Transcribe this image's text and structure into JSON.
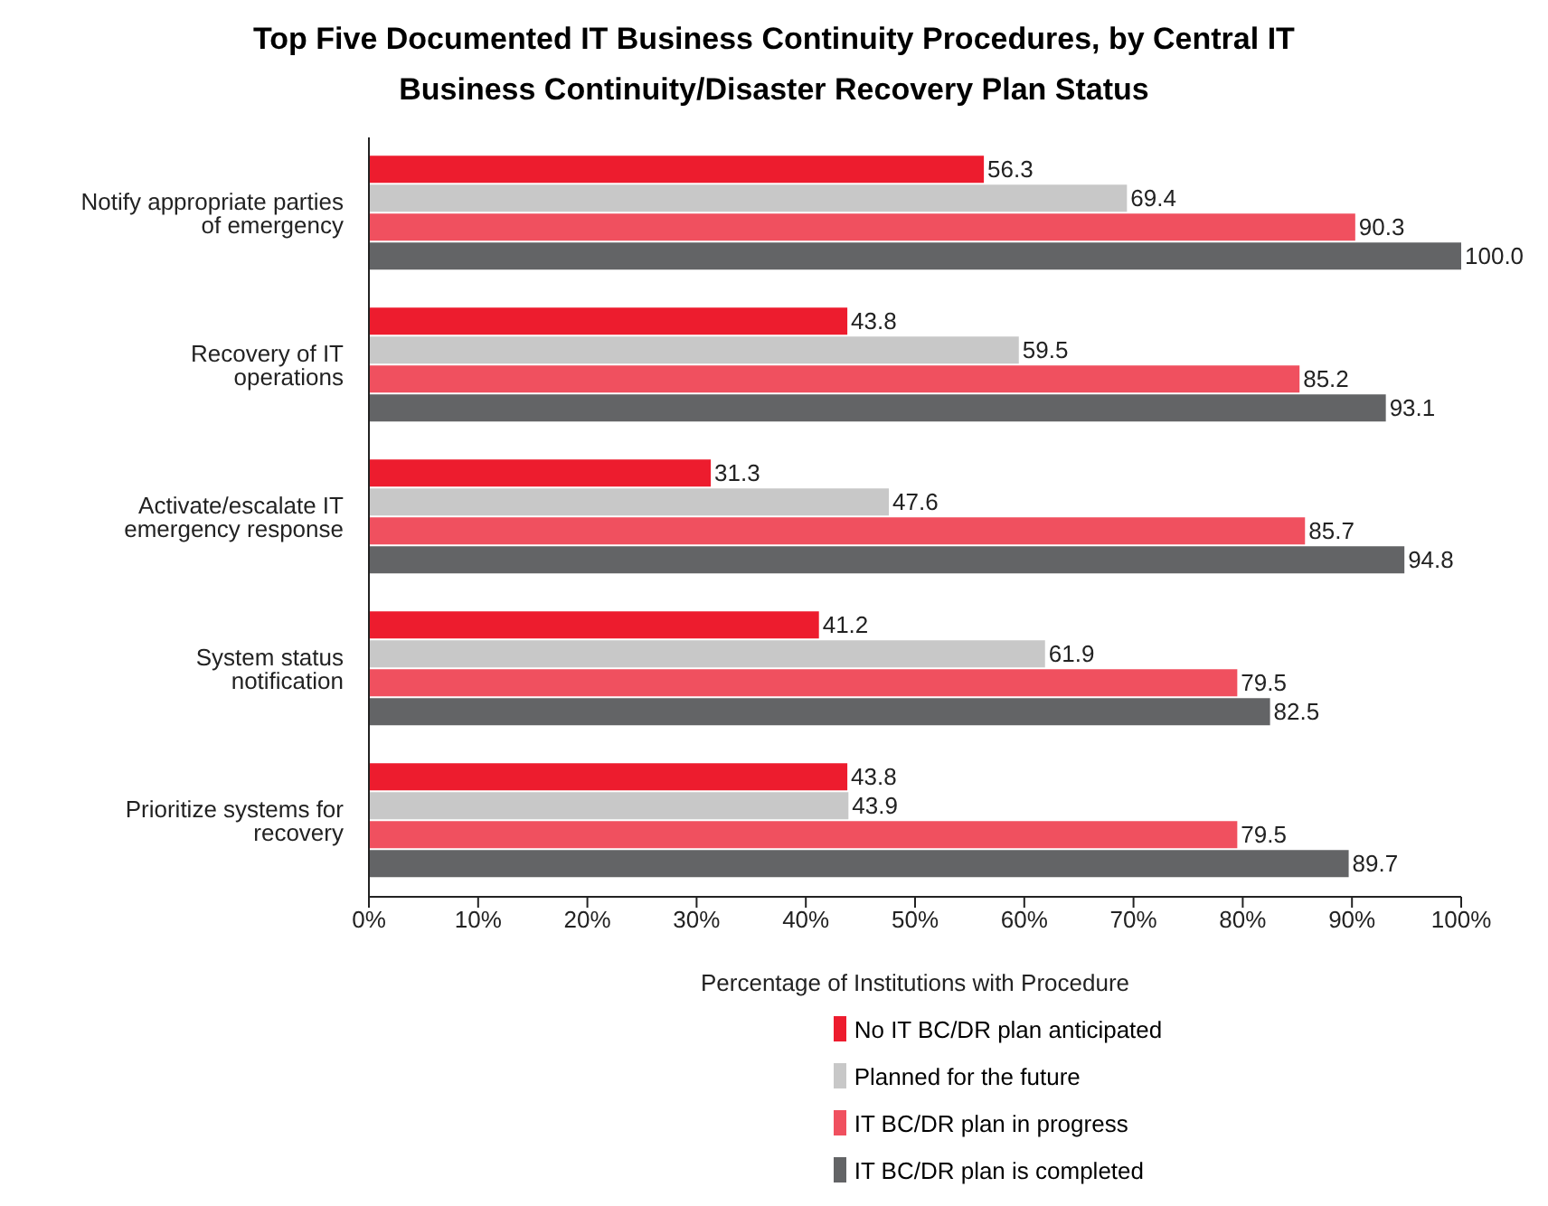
{
  "chart_data": {
    "type": "bar",
    "orientation": "horizontal",
    "title": "Top Five Documented IT Business Continuity Procedures, by Central IT Business Continuity/Disaster Recovery Plan Status",
    "xlabel": "Percentage of Institutions with Procedure",
    "categories": [
      "Notify appropriate parties of emergency",
      "Recovery of IT operations",
      "Activate/escalate IT emergency response",
      "System status notification",
      "Prioritize systems for recovery"
    ],
    "series": [
      {
        "name": "No IT BC/DR plan anticipated",
        "color": "#ed1c2e",
        "values": [
          56.3,
          43.8,
          31.3,
          41.2,
          43.8
        ],
        "value_labels": [
          "56.3",
          "43.8",
          "31.3",
          "41.2",
          "43.8"
        ]
      },
      {
        "name": "Planned for the future",
        "color": "#c8c8c8",
        "values": [
          69.4,
          59.5,
          47.6,
          61.9,
          43.9
        ],
        "value_labels": [
          "69.4",
          "59.5",
          "47.6",
          "61.9",
          "43.9"
        ]
      },
      {
        "name": "IT BC/DR plan in progress",
        "color": "#f0505f",
        "values": [
          90.3,
          85.2,
          85.7,
          79.5,
          79.5
        ],
        "value_labels": [
          "90.3",
          "85.2",
          "85.7",
          "79.5",
          "79.5"
        ]
      },
      {
        "name": "IT BC/DR plan is completed",
        "color": "#636466",
        "values": [
          100,
          93.1,
          94.8,
          82.5,
          89.7
        ],
        "value_labels": [
          "100.0",
          "93.1",
          "94.8",
          "82.5",
          "89.7"
        ]
      }
    ],
    "xlim": [
      0,
      100
    ],
    "xticks": [
      {
        "value": 0,
        "label": "0%"
      },
      {
        "value": 10,
        "label": "10%"
      },
      {
        "value": 20,
        "label": "20%"
      },
      {
        "value": 30,
        "label": "30%"
      },
      {
        "value": 40,
        "label": "40%"
      },
      {
        "value": 50,
        "label": "50%"
      },
      {
        "value": 60,
        "label": "60%"
      },
      {
        "value": 70,
        "label": "70%"
      },
      {
        "value": 80,
        "label": "80%"
      },
      {
        "value": 90,
        "label": "90%"
      },
      {
        "value": 100,
        "label": "100%"
      }
    ],
    "grid": false,
    "legend": "bottom"
  }
}
